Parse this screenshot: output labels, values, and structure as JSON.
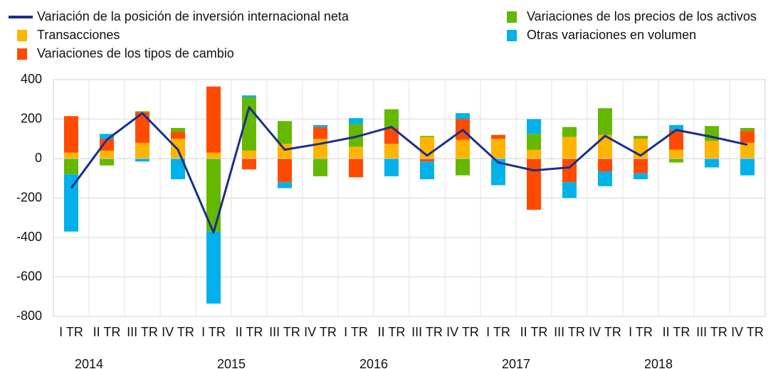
{
  "chart_data": {
    "type": "bar",
    "categories": [
      "I TR",
      "II TR",
      "III TR",
      "IV TR",
      "I TR",
      "II TR",
      "III TR",
      "IV TR",
      "I TR",
      "II TR",
      "III TR",
      "IV TR",
      "I TR",
      "II TR",
      "III TR",
      "IV TR",
      "I TR",
      "II TR",
      "III TR",
      "IV TR"
    ],
    "years": [
      "2014",
      "2015",
      "2016",
      "2017",
      "2018"
    ],
    "series": [
      {
        "name": "Variación de la posición de inversión internacional neta",
        "type": "line",
        "color": "#1b2f8a",
        "values": [
          -150,
          95,
          230,
          45,
          -375,
          260,
          45,
          75,
          110,
          160,
          15,
          145,
          -20,
          -60,
          -45,
          115,
          15,
          145,
          110,
          70
        ]
      },
      {
        "name": "Transacciones",
        "color": "#ffb400",
        "values": [
          30,
          40,
          80,
          100,
          30,
          40,
          75,
          100,
          60,
          75,
          110,
          95,
          100,
          45,
          110,
          120,
          100,
          45,
          90,
          80
        ]
      },
      {
        "name": "Variaciones de los tipos de cambio",
        "color": "#ff4b00",
        "values": [
          185,
          60,
          155,
          35,
          335,
          -55,
          -120,
          60,
          -95,
          80,
          -15,
          105,
          20,
          -260,
          -120,
          -65,
          -75,
          100,
          0,
          60
        ]
      },
      {
        "name": "Variaciones de los precios de los activos",
        "color": "#65b800",
        "values": [
          -80,
          -35,
          5,
          20,
          -370,
          270,
          115,
          -90,
          115,
          95,
          5,
          -85,
          0,
          80,
          50,
          135,
          15,
          -20,
          75,
          15
        ]
      },
      {
        "name": "Otras variaciones en volumen",
        "color": "#00b1ea",
        "values": [
          -290,
          25,
          -15,
          -105,
          -365,
          10,
          -30,
          10,
          30,
          -90,
          -90,
          30,
          -135,
          75,
          -80,
          -75,
          -30,
          25,
          -45,
          -85
        ]
      }
    ],
    "ylim": [
      -800,
      400
    ],
    "yticks": [
      400,
      200,
      0,
      -200,
      -400,
      -600,
      -800
    ],
    "grid": true
  }
}
